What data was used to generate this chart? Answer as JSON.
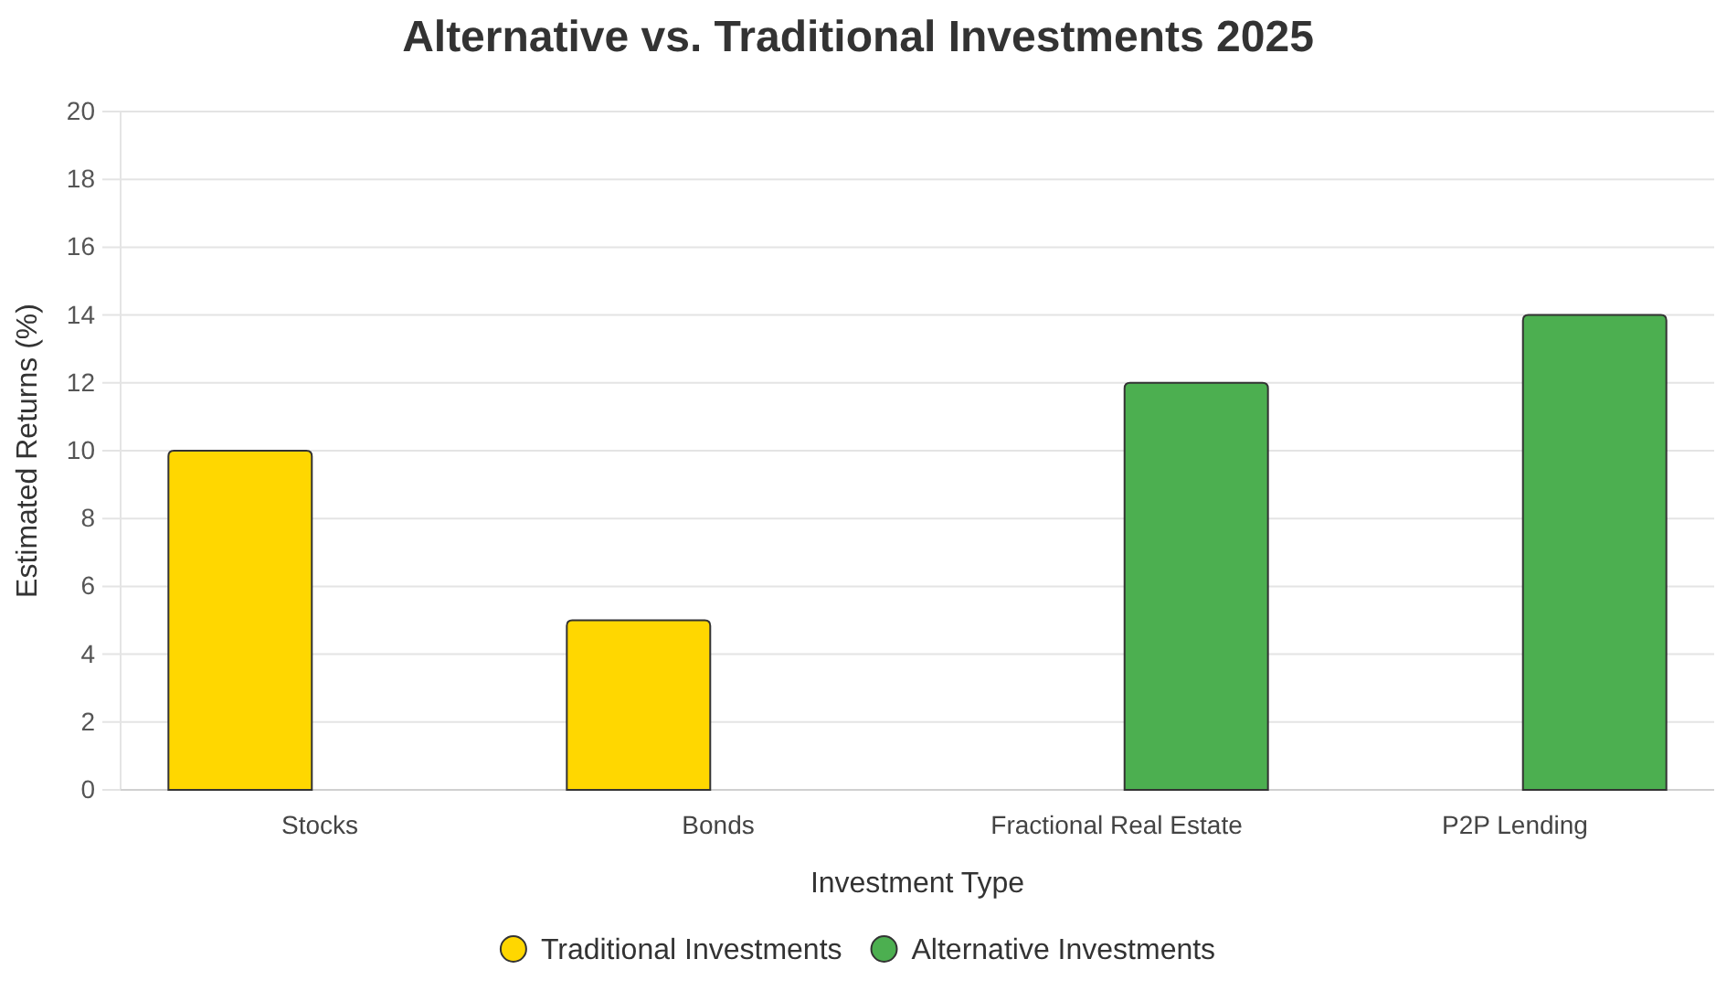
{
  "chart_data": {
    "type": "bar",
    "title": "Alternative vs. Traditional Investments 2025",
    "xlabel": "Investment Type",
    "ylabel": "Estimated Returns (%)",
    "categories": [
      "Stocks",
      "Bonds",
      "Fractional Real Estate",
      "P2P Lending"
    ],
    "series": [
      {
        "name": "Traditional Investments",
        "color": "#ffd700",
        "values": [
          10,
          5,
          null,
          null
        ]
      },
      {
        "name": "Alternative Investments",
        "color": "#4caf50",
        "values": [
          null,
          null,
          12,
          14
        ]
      }
    ],
    "ylim": [
      0,
      20
    ],
    "yticks": [
      0,
      2,
      4,
      6,
      8,
      10,
      12,
      14,
      16,
      18,
      20
    ],
    "grid": "y",
    "legend": "bottom"
  }
}
